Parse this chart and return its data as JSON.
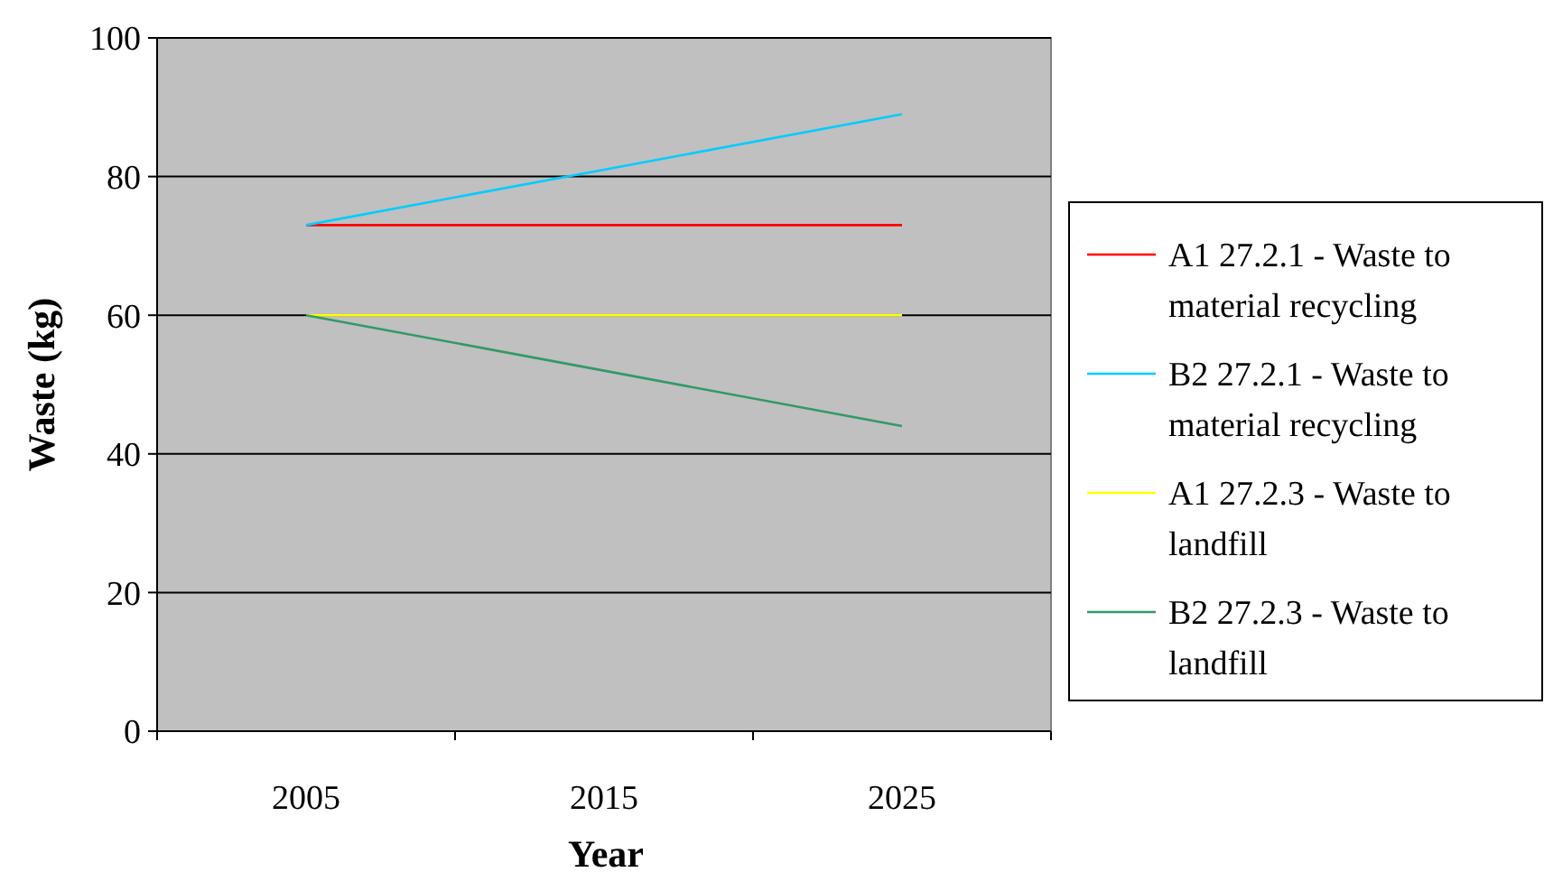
{
  "chart_data": {
    "type": "line",
    "xlabel": "Year",
    "ylabel": "Waste (kg)",
    "categories": [
      "2005",
      "2015",
      "2025"
    ],
    "series": [
      {
        "name": "A1 27.2.1 - Waste to material recycling",
        "color": "#ff0000",
        "values": [
          73,
          73,
          73
        ]
      },
      {
        "name": "B2 27.2.1 - Waste to material recycling",
        "color": "#00ccff",
        "values": [
          73,
          81,
          89
        ]
      },
      {
        "name": "A1 27.2.3 - Waste to landfill",
        "color": "#ffff00",
        "values": [
          60,
          60,
          60
        ]
      },
      {
        "name": "B2 27.2.3 - Waste to landfill",
        "color": "#339966",
        "values": [
          60,
          52,
          44
        ]
      }
    ],
    "ylim": [
      0,
      100
    ],
    "yticks": [
      0,
      20,
      40,
      60,
      80,
      100
    ],
    "grid": "y",
    "legend": "right",
    "marker": "none",
    "line_style": "solid"
  }
}
